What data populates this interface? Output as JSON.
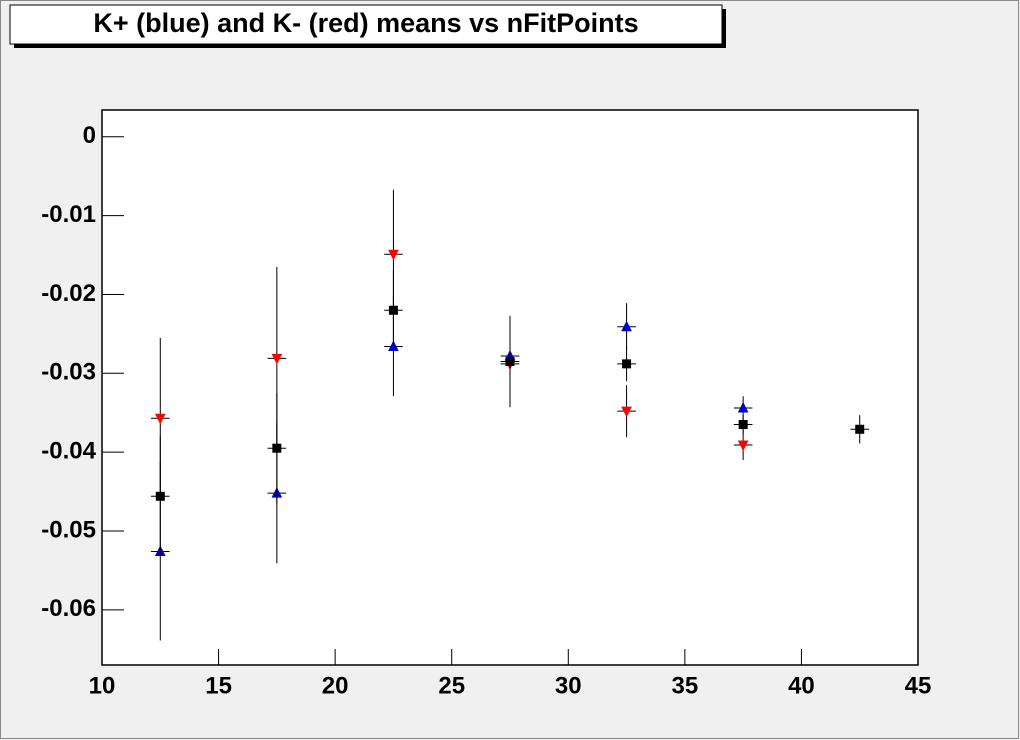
{
  "chart_data": {
    "type": "errorbar",
    "title": "K+ (blue) and K- (red) means vs nFitPoints",
    "x": [
      12.5,
      17.5,
      22.5,
      27.5,
      32.5,
      37.5,
      42.5
    ],
    "xerr": 0.4,
    "series": [
      {
        "color": "#ff0000",
        "marker": "triangle-down",
        "values": [
          -0.0357,
          -0.0281,
          -0.0149,
          -0.0288,
          -0.0348,
          -0.0391,
          null
        ],
        "errors": [
          0.0102,
          0.0116,
          0.0082,
          0.0055,
          0.0033,
          0.0019,
          null
        ]
      },
      {
        "color": "#0000cc",
        "marker": "triangle-up",
        "values": [
          -0.0526,
          -0.0452,
          -0.0266,
          -0.0278,
          -0.0241,
          -0.0344,
          null
        ],
        "errors": [
          0.0113,
          0.0089,
          0.0063,
          0.0051,
          0.003,
          0.0015,
          null
        ]
      },
      {
        "color": "#000000",
        "marker": "square",
        "values": [
          -0.0456,
          -0.0395,
          -0.022,
          -0.0285,
          -0.0288,
          -0.0365,
          -0.0371
        ],
        "errors": [
          0.0076,
          0.007,
          0.005,
          0.004,
          0.0022,
          0.0012,
          0.0018
        ]
      }
    ],
    "xlim": [
      10,
      45
    ],
    "xticks": [
      10,
      15,
      20,
      25,
      30,
      35,
      40,
      45
    ],
    "ylim": [
      -0.067,
      0.0034
    ],
    "yticks": [
      0,
      -0.01,
      -0.02,
      -0.03,
      -0.04,
      -0.05,
      -0.06
    ]
  }
}
